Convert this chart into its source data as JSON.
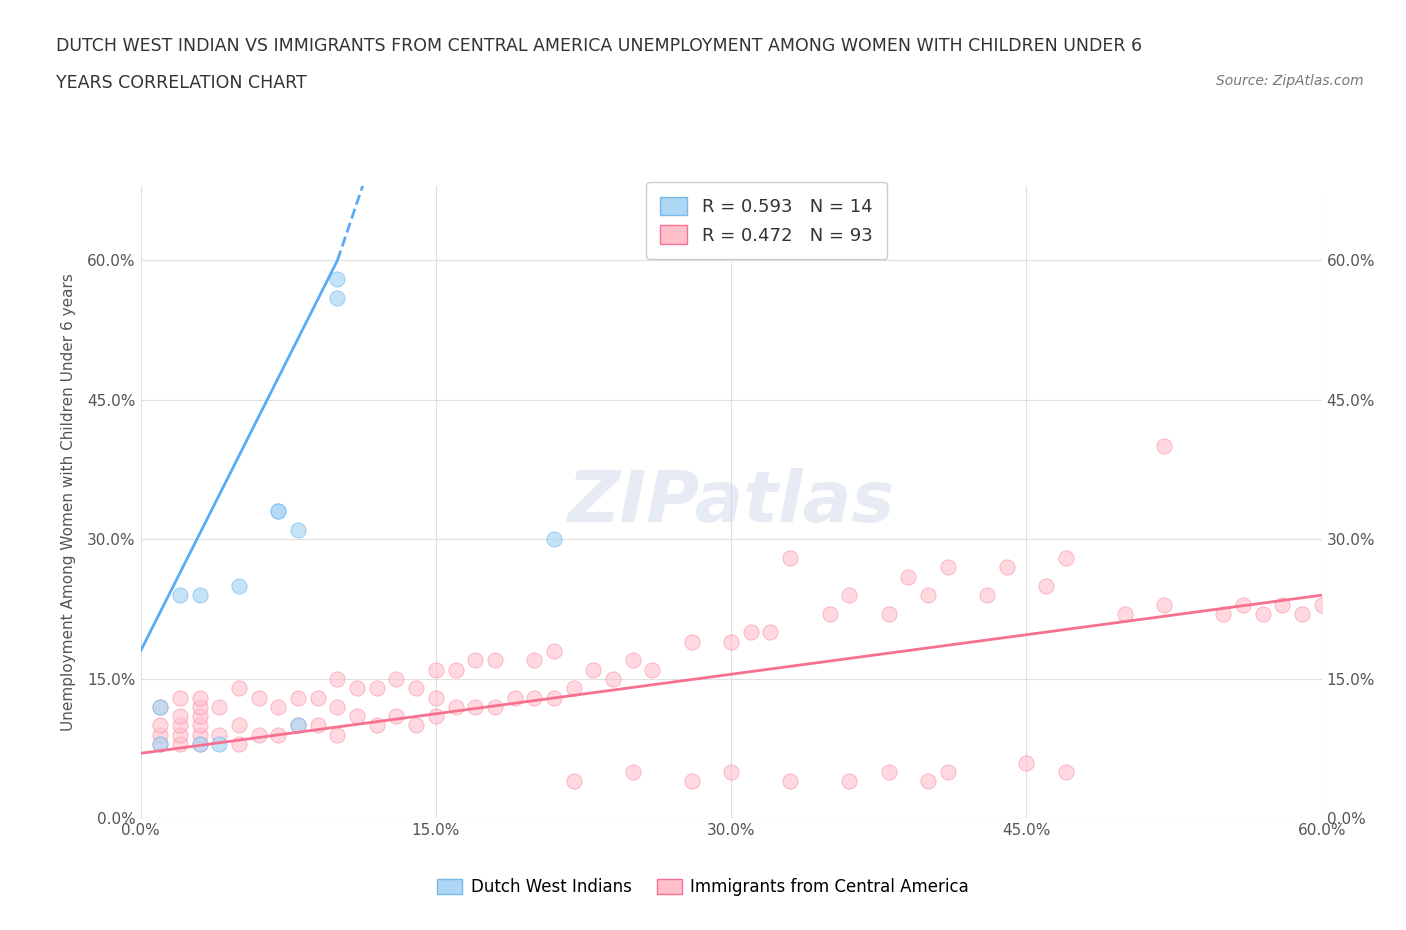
{
  "title_line1": "DUTCH WEST INDIAN VS IMMIGRANTS FROM CENTRAL AMERICA UNEMPLOYMENT AMONG WOMEN WITH CHILDREN UNDER 6",
  "title_line2": "YEARS CORRELATION CHART",
  "source": "Source: ZipAtlas.com",
  "ylabel": "Unemployment Among Women with Children Under 6 years",
  "xlabel": "",
  "xlim": [
    0.0,
    0.6
  ],
  "ylim": [
    0.0,
    0.68
  ],
  "yticks": [
    0.0,
    0.15,
    0.3,
    0.45,
    0.6
  ],
  "ytick_labels": [
    "0.0%",
    "15.0%",
    "30.0%",
    "45.0%",
    "60.0%"
  ],
  "xticks": [
    0.0,
    0.15,
    0.3,
    0.45,
    0.6
  ],
  "xtick_labels": [
    "0.0%",
    "15.0%",
    "30.0%",
    "45.0%",
    "60.0%"
  ],
  "legend_entries": [
    {
      "label": "R = 0.593   N = 14",
      "color": "#a8c8f0"
    },
    {
      "label": "R = 0.472   N = 93",
      "color": "#f8b0c0"
    }
  ],
  "legend_bottom": [
    "Dutch West Indians",
    "Immigrants from Central America"
  ],
  "watermark": "ZIPatlas",
  "dutch_scatter_x": [
    0.01,
    0.01,
    0.02,
    0.03,
    0.03,
    0.04,
    0.05,
    0.07,
    0.07,
    0.08,
    0.08,
    0.1,
    0.1,
    0.21
  ],
  "dutch_scatter_y": [
    0.08,
    0.12,
    0.24,
    0.24,
    0.08,
    0.08,
    0.25,
    0.33,
    0.33,
    0.31,
    0.1,
    0.56,
    0.58,
    0.3
  ],
  "central_scatter_x": [
    0.01,
    0.01,
    0.01,
    0.01,
    0.02,
    0.02,
    0.02,
    0.02,
    0.02,
    0.03,
    0.03,
    0.03,
    0.03,
    0.03,
    0.03,
    0.04,
    0.04,
    0.05,
    0.05,
    0.05,
    0.06,
    0.06,
    0.07,
    0.07,
    0.08,
    0.08,
    0.09,
    0.09,
    0.1,
    0.1,
    0.1,
    0.11,
    0.11,
    0.12,
    0.12,
    0.13,
    0.13,
    0.14,
    0.14,
    0.15,
    0.15,
    0.15,
    0.16,
    0.16,
    0.17,
    0.17,
    0.18,
    0.18,
    0.19,
    0.2,
    0.2,
    0.21,
    0.21,
    0.22,
    0.23,
    0.24,
    0.25,
    0.26,
    0.28,
    0.3,
    0.31,
    0.32,
    0.33,
    0.35,
    0.36,
    0.38,
    0.39,
    0.4,
    0.41,
    0.43,
    0.44,
    0.46,
    0.47,
    0.5,
    0.52,
    0.55,
    0.56,
    0.57,
    0.58,
    0.59,
    0.6,
    0.52,
    0.4,
    0.41,
    0.45,
    0.47,
    0.36,
    0.38,
    0.33,
    0.3,
    0.28,
    0.25,
    0.22
  ],
  "central_scatter_y": [
    0.08,
    0.09,
    0.1,
    0.12,
    0.08,
    0.09,
    0.1,
    0.11,
    0.13,
    0.08,
    0.09,
    0.1,
    0.11,
    0.12,
    0.13,
    0.09,
    0.12,
    0.08,
    0.1,
    0.14,
    0.09,
    0.13,
    0.09,
    0.12,
    0.1,
    0.13,
    0.1,
    0.13,
    0.09,
    0.12,
    0.15,
    0.11,
    0.14,
    0.1,
    0.14,
    0.11,
    0.15,
    0.1,
    0.14,
    0.11,
    0.13,
    0.16,
    0.12,
    0.16,
    0.12,
    0.17,
    0.12,
    0.17,
    0.13,
    0.13,
    0.17,
    0.13,
    0.18,
    0.14,
    0.16,
    0.15,
    0.17,
    0.16,
    0.19,
    0.19,
    0.2,
    0.2,
    0.28,
    0.22,
    0.24,
    0.22,
    0.26,
    0.24,
    0.27,
    0.24,
    0.27,
    0.25,
    0.28,
    0.22,
    0.23,
    0.22,
    0.23,
    0.22,
    0.23,
    0.22,
    0.23,
    0.4,
    0.04,
    0.05,
    0.06,
    0.05,
    0.04,
    0.05,
    0.04,
    0.05,
    0.04,
    0.05,
    0.04
  ],
  "dutch_line_x": [
    0.0,
    0.1
  ],
  "dutch_line_y": [
    0.18,
    0.6
  ],
  "central_line_x": [
    0.0,
    0.6
  ],
  "central_line_y": [
    0.07,
    0.24
  ],
  "dutch_color": "#5aabf5",
  "dutch_edge_color": "#5aabf5",
  "central_color": "#f87090",
  "central_edge_color": "#f87090",
  "bg_color": "#ffffff",
  "grid_color": "#e0e0e0",
  "title_color": "#333333",
  "axis_color": "#555555"
}
